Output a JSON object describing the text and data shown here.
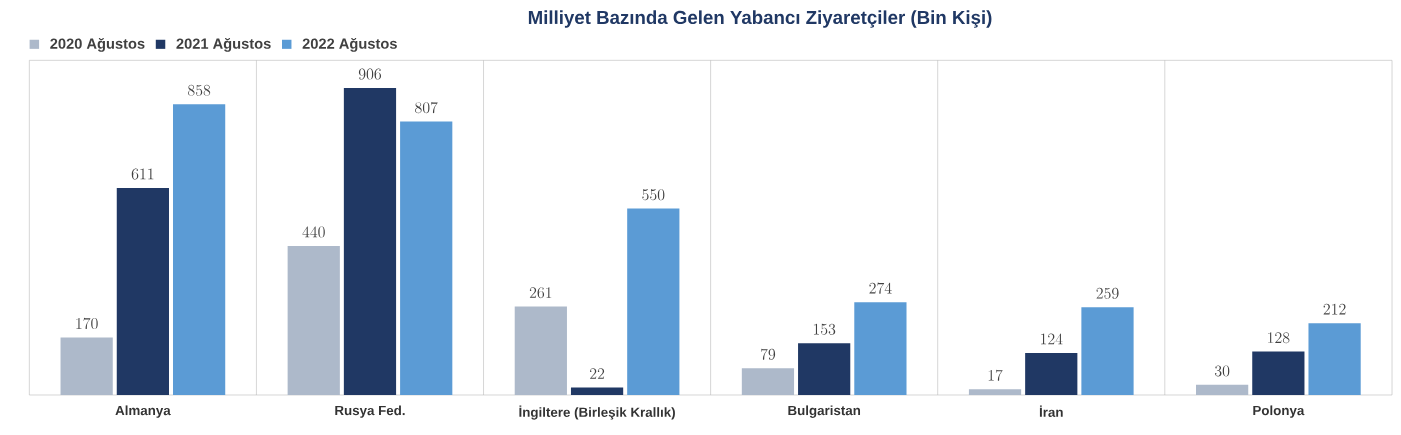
{
  "chart_data": {
    "type": "bar",
    "title": "Milliyet Bazında Gelen Yabancı Ziyaretçiler (Bin Kişi)",
    "categories": [
      "Almanya",
      "Rusya Fed.",
      "İngiltere (Birleşik Krallık)",
      "Bulgaristan",
      "İran",
      "Polonya"
    ],
    "series": [
      {
        "name": "2020 Ağustos",
        "color": "#adb9ca",
        "values": [
          170,
          440,
          261,
          79,
          17,
          30
        ]
      },
      {
        "name": "2021 Ağustos",
        "color": "#203864",
        "values": [
          611,
          906,
          22,
          153,
          124,
          128
        ]
      },
      {
        "name": "2022 Ağustos",
        "color": "#5b9bd5",
        "values": [
          858,
          807,
          550,
          274,
          259,
          212
        ]
      }
    ],
    "data_labels": true,
    "grid": "x",
    "legend": "top left"
  }
}
